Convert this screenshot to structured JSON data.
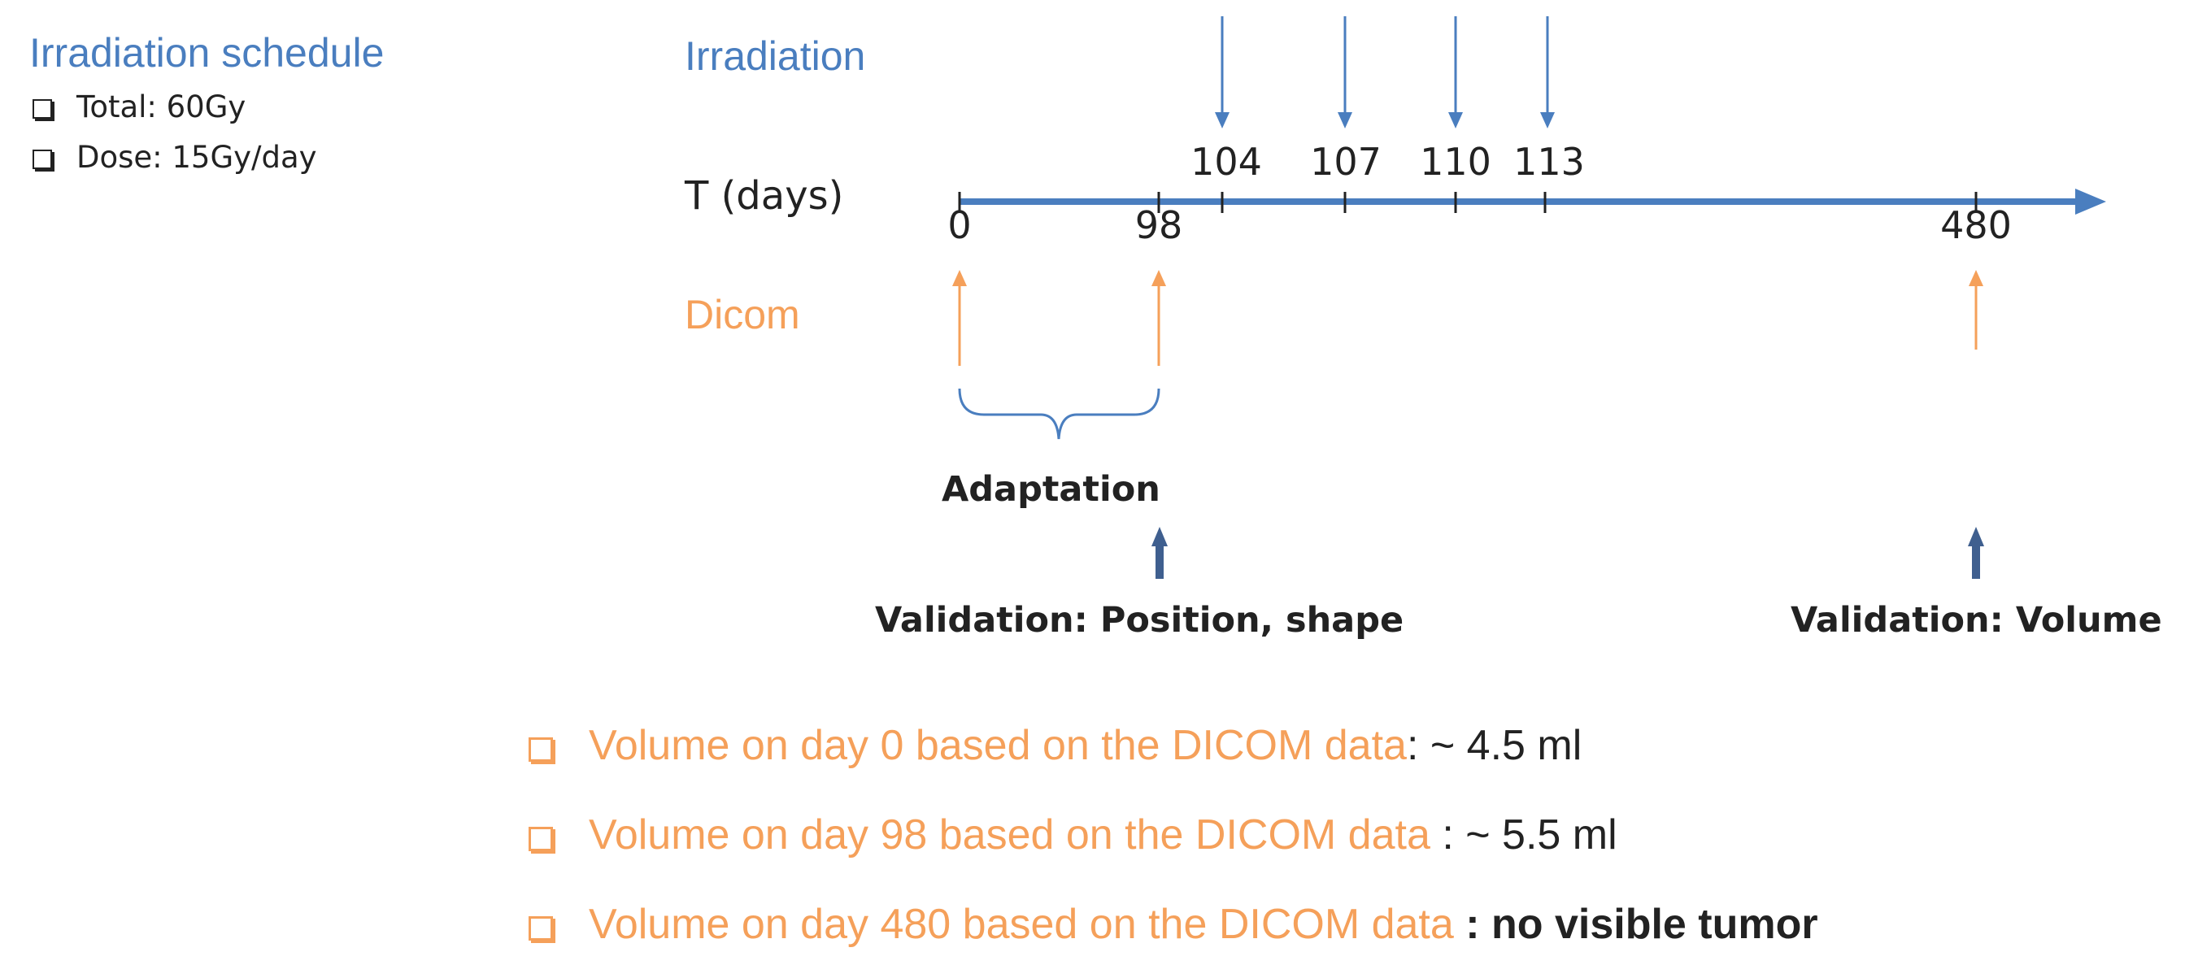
{
  "schedule": {
    "title": "Irradiation schedule",
    "items": [
      "Total: 60Gy",
      "Dose: 15Gy/day"
    ]
  },
  "timeline": {
    "irradiation_label": "Irradiation",
    "axis_label": "T (days)",
    "dicom_label": "Dicom",
    "irradiation_days": [
      "104",
      "107",
      "110",
      "113"
    ],
    "dicom_days": [
      "0",
      "98",
      "480"
    ],
    "adaptation_label": "Adaptation",
    "validation_left": "Validation: Position,  shape",
    "validation_right": "Validation: Volume"
  },
  "bullets": [
    {
      "orange": "Volume on day 0 based on the DICOM data",
      "dark": ": ~ 4.5 ml",
      "bold": false
    },
    {
      "orange": "Volume on day 98 based on the DICOM data ",
      "dark": ": ~ 5.5 ml",
      "bold": false
    },
    {
      "orange": "Volume on day 480 based on the DICOM data ",
      "dark": ": no visible tumor",
      "bold": true
    }
  ],
  "colors": {
    "blue": "#4a7ebf",
    "orange": "#f5a05a",
    "navy": "#3f5f8f",
    "text": "#222222"
  }
}
